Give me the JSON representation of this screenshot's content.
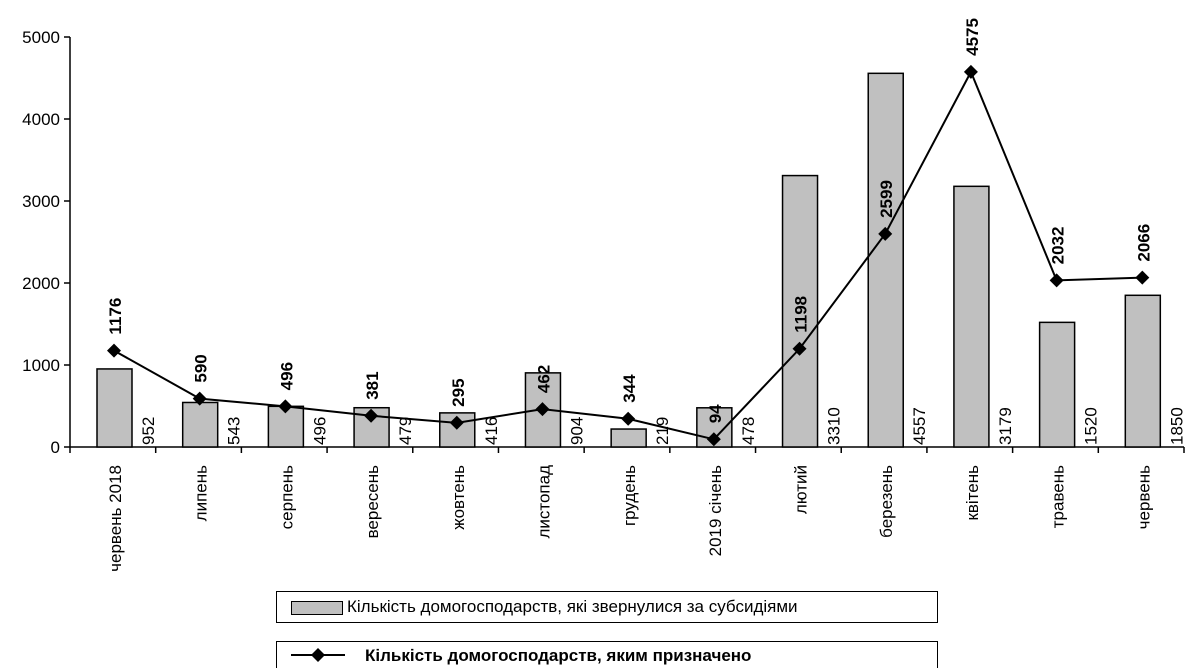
{
  "chart_data": {
    "type": "bar+line",
    "categories": [
      "червень 2018",
      "липень",
      "серпень",
      "вересень",
      "жовтень",
      "листопад",
      "грудень",
      "2019 січень",
      "лютий",
      "березень",
      "квітень",
      "травень",
      "червень"
    ],
    "series": [
      {
        "name": "Кількість домогосподарств, які звернулися за субсидіями",
        "type": "bar",
        "color": "#c0c0c0",
        "values": [
          952,
          543,
          496,
          479,
          416,
          904,
          219,
          478,
          3310,
          4557,
          3179,
          1520,
          1850
        ],
        "labels": [
          "952",
          "543",
          "496",
          "479",
          "416",
          "904",
          "219",
          "478",
          "3310",
          "4557",
          "3179",
          "1520",
          "1850"
        ]
      },
      {
        "name": "Кількість домогосподарств, яким призначено",
        "type": "line",
        "color": "#000000",
        "marker": "diamond",
        "values": [
          1176,
          590,
          496,
          381,
          295,
          462,
          344,
          94,
          1198,
          2599,
          4575,
          2032,
          2066
        ],
        "labels": [
          "1176",
          "590",
          "496",
          "381",
          "295",
          "462",
          "344",
          "94",
          "1198",
          "2599",
          "4575",
          "2032",
          "2066"
        ]
      }
    ],
    "ylim": [
      0,
      5000
    ],
    "yticks": [
      "0",
      "1000",
      "2000",
      "3000",
      "4000",
      "5000"
    ],
    "grid": false,
    "legend_position": "bottom"
  }
}
